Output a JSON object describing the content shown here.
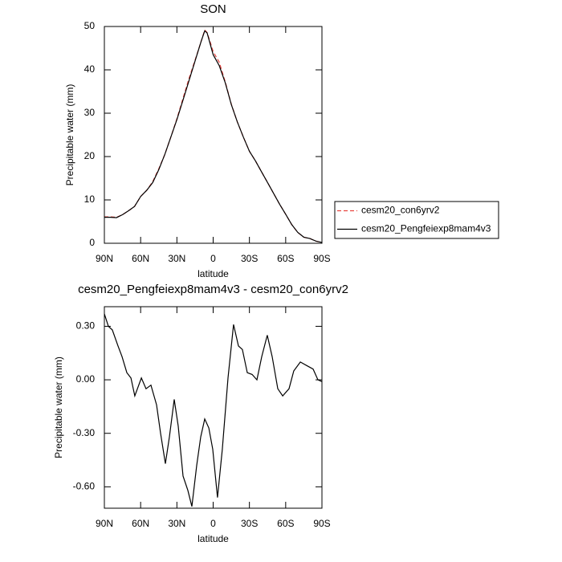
{
  "chart_data": [
    {
      "type": "line",
      "title": "SON",
      "xlabel": "latitude",
      "ylabel": "Precipitable water (mm)",
      "x": [
        90,
        85,
        80,
        75,
        70,
        65,
        60,
        55,
        50,
        45,
        40,
        35,
        30,
        25,
        20,
        15,
        10,
        7,
        5,
        2,
        0,
        -5,
        -10,
        -15,
        -20,
        -25,
        -30,
        -35,
        -40,
        -45,
        -50,
        -55,
        -60,
        -65,
        -70,
        -75,
        -80,
        -85,
        -90
      ],
      "series": [
        {
          "name": "cesm20_con6yrv2",
          "color": "#e8443f",
          "dash": true,
          "values": [
            6.1,
            6.1,
            6.0,
            6.6,
            7.5,
            8.5,
            10.8,
            12.2,
            14.2,
            17.2,
            20.5,
            24.5,
            28.7,
            33.4,
            38.0,
            42.2,
            46.5,
            49.2,
            48.6,
            46.0,
            44.2,
            41.8,
            37.2,
            32.1,
            28.0,
            24.5,
            21.2,
            19.0,
            16.5,
            14.0,
            11.5,
            9.0,
            6.7,
            4.3,
            2.5,
            1.4,
            1.1,
            0.5,
            0.2
          ]
        },
        {
          "name": "cesm20_Pengfeiexp8mam4v3",
          "color": "#000000",
          "dash": false,
          "values": [
            6.0,
            6.0,
            5.9,
            6.6,
            7.5,
            8.5,
            10.8,
            12.2,
            14.0,
            17.0,
            20.5,
            24.5,
            28.5,
            33.0,
            37.5,
            42.0,
            46.5,
            49.0,
            48.5,
            45.5,
            43.5,
            41.0,
            37.0,
            32.0,
            28.0,
            24.5,
            21.2,
            19.0,
            16.5,
            14.0,
            11.5,
            9.0,
            6.7,
            4.3,
            2.5,
            1.4,
            1.1,
            0.5,
            0.2
          ]
        }
      ],
      "xlim": [
        90,
        -90
      ],
      "xticks": [
        {
          "value": 90,
          "label": "90N"
        },
        {
          "value": 60,
          "label": "60N"
        },
        {
          "value": 30,
          "label": "30N"
        },
        0,
        {
          "value": -30,
          "label": "30S"
        },
        {
          "value": -60,
          "label": "60S"
        },
        {
          "value": -90,
          "label": "90S"
        }
      ],
      "ylim": [
        0,
        50
      ],
      "yticks": [
        0,
        10,
        20,
        30,
        40,
        50
      ],
      "legend": "right"
    },
    {
      "type": "line",
      "title": "cesm20_Pengfeiexp8mam4v3 - cesm20_con6yrv2",
      "xlabel": "latitude",
      "ylabel": "Precipitable water (mm)",
      "x": [
        90,
        86.7,
        83.4,
        78.7,
        75.4,
        71.4,
        68,
        64.8,
        59.4,
        55.5,
        51.5,
        46.8,
        43.5,
        39.5,
        36.2,
        32.2,
        28.9,
        24.9,
        20.9,
        17.6,
        13.6,
        10.3,
        7,
        3.6,
        0.3,
        -3.6,
        -7.6,
        -12.3,
        -16.9,
        -20.9,
        -24.2,
        -28.2,
        -32.2,
        -36.2,
        -40.2,
        -44.8,
        -48.8,
        -53.5,
        -57.5,
        -62.8,
        -66.7,
        -72.1,
        -77.4,
        -82.7,
        -86.7,
        -90
      ],
      "values": [
        0.37,
        0.3,
        0.28,
        0.19,
        0.13,
        0.04,
        0.01,
        -0.09,
        0.01,
        -0.05,
        -0.03,
        -0.14,
        -0.3,
        -0.47,
        -0.32,
        -0.11,
        -0.26,
        -0.54,
        -0.62,
        -0.71,
        -0.48,
        -0.32,
        -0.22,
        -0.27,
        -0.39,
        -0.66,
        -0.39,
        0.01,
        0.31,
        0.19,
        0.17,
        0.04,
        0.03,
        0.0,
        0.13,
        0.25,
        0.13,
        -0.05,
        -0.09,
        -0.05,
        0.05,
        0.1,
        0.08,
        0.06,
        0.0,
        -0.01
      ],
      "color": "#000000",
      "xlim": [
        90,
        -90
      ],
      "xticks": [
        {
          "value": 90,
          "label": "90N"
        },
        {
          "value": 60,
          "label": "60N"
        },
        {
          "value": 30,
          "label": "30N"
        },
        0,
        {
          "value": -30,
          "label": "30S"
        },
        {
          "value": -60,
          "label": "60S"
        },
        {
          "value": -90,
          "label": "90S"
        }
      ],
      "ylim": [
        -0.72,
        0.41
      ],
      "yticks": [
        {
          "value": 0.3,
          "label": "0.30"
        },
        {
          "value": 0,
          "label": "0.00"
        },
        {
          "value": -0.3,
          "label": "-0.30"
        },
        {
          "value": -0.6,
          "label": "-0.60"
        }
      ]
    }
  ]
}
